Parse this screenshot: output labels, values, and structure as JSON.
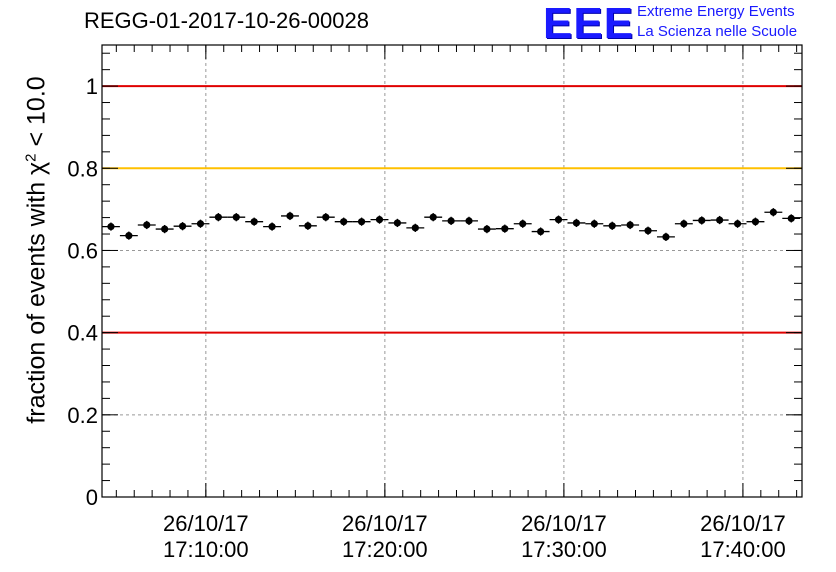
{
  "chart_data": {
    "type": "scatter",
    "title": "REGG-01-2017-10-26-00028",
    "ylabel_prefix": "fraction of events with",
    "ylabel_symbol": "χ",
    "ylabel_sup": "2",
    "ylabel_suffix": " < 10.0",
    "xlabel": "",
    "ylim": [
      0,
      1.1
    ],
    "yticks": [
      {
        "value": 0,
        "label": "0"
      },
      {
        "value": 0.2,
        "label": "0.2"
      },
      {
        "value": 0.4,
        "label": "0.4"
      },
      {
        "value": 0.6,
        "label": "0.6"
      },
      {
        "value": 0.8,
        "label": "0.8"
      },
      {
        "value": 1.0,
        "label": "1"
      }
    ],
    "xlim_minutes": [
      4.2,
      43.3
    ],
    "xticks": [
      {
        "minute": 10,
        "date": "26/10/17",
        "time": "17:10:00"
      },
      {
        "minute": 20,
        "date": "26/10/17",
        "time": "17:20:00"
      },
      {
        "minute": 30,
        "date": "26/10/17",
        "time": "17:30:00"
      },
      {
        "minute": 40,
        "date": "26/10/17",
        "time": "17:40:00"
      }
    ],
    "reference_lines": [
      {
        "y": 1.0,
        "color": "#e00000"
      },
      {
        "y": 0.8,
        "color": "#ffc000"
      },
      {
        "y": 0.4,
        "color": "#e00000"
      }
    ],
    "grid": true,
    "marker_color": "#000000",
    "x_error_minutes": 0.5,
    "y_error": 0.01,
    "series": [
      {
        "name": "fraction",
        "x_minutes": [
          4.7,
          5.7,
          6.7,
          7.7,
          8.7,
          9.7,
          10.7,
          11.7,
          12.7,
          13.7,
          14.7,
          15.7,
          16.7,
          17.7,
          18.7,
          19.7,
          20.7,
          21.7,
          22.7,
          23.7,
          24.7,
          25.7,
          26.7,
          27.7,
          28.7,
          29.7,
          30.7,
          31.7,
          32.7,
          33.7,
          34.7,
          35.7,
          36.7,
          37.7,
          38.7,
          39.7,
          40.7,
          41.7,
          42.7
        ],
        "values": [
          0.658,
          0.636,
          0.662,
          0.652,
          0.659,
          0.665,
          0.681,
          0.681,
          0.67,
          0.658,
          0.684,
          0.66,
          0.681,
          0.67,
          0.67,
          0.675,
          0.667,
          0.655,
          0.681,
          0.672,
          0.672,
          0.652,
          0.653,
          0.665,
          0.646,
          0.675,
          0.667,
          0.665,
          0.66,
          0.662,
          0.648,
          0.633,
          0.665,
          0.673,
          0.674,
          0.665,
          0.67,
          0.693,
          0.678
        ]
      }
    ]
  },
  "logo": {
    "mark": "EEE",
    "line1": "Extreme Energy Events",
    "line2": "La Scienza nelle Scuole"
  }
}
